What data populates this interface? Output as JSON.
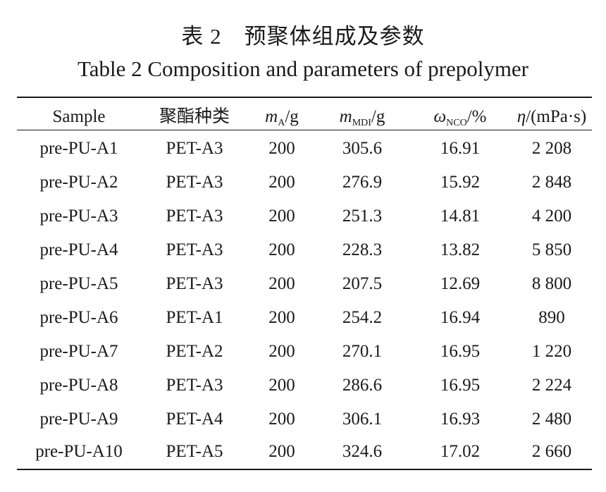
{
  "title_cn": "表 2　预聚体组成及参数",
  "title_en": "Table 2    Composition and parameters of prepolymer",
  "headers": {
    "sample": "Sample",
    "polyester": "聚酯种类",
    "mA": {
      "sym": "m",
      "sub": "A",
      "unit": "/g"
    },
    "mMDI": {
      "sym": "m",
      "sub": "MDI",
      "unit": "/g"
    },
    "wNCO": {
      "sym": "ω",
      "sub": "NCO",
      "unit": "/%"
    },
    "eta": {
      "sym": "η",
      "unit": "/(mPa·s)"
    }
  },
  "rows": [
    [
      "pre-PU-A1",
      "PET-A3",
      "200",
      "305.6",
      "16.91",
      "2 208"
    ],
    [
      "pre-PU-A2",
      "PET-A3",
      "200",
      "276.9",
      "15.92",
      "2 848"
    ],
    [
      "pre-PU-A3",
      "PET-A3",
      "200",
      "251.3",
      "14.81",
      "4 200"
    ],
    [
      "pre-PU-A4",
      "PET-A3",
      "200",
      "228.3",
      "13.82",
      "5 850"
    ],
    [
      "pre-PU-A5",
      "PET-A3",
      "200",
      "207.5",
      "12.69",
      "8 800"
    ],
    [
      "pre-PU-A6",
      "PET-A1",
      "200",
      "254.2",
      "16.94",
      "890"
    ],
    [
      "pre-PU-A7",
      "PET-A2",
      "200",
      "270.1",
      "16.95",
      "1 220"
    ],
    [
      "pre-PU-A8",
      "PET-A3",
      "200",
      "286.6",
      "16.95",
      "2 224"
    ],
    [
      "pre-PU-A9",
      "PET-A4",
      "200",
      "306.1",
      "16.93",
      "2 480"
    ],
    [
      "pre-PU-A10",
      "PET-A5",
      "200",
      "324.6",
      "17.02",
      "2 660"
    ]
  ]
}
